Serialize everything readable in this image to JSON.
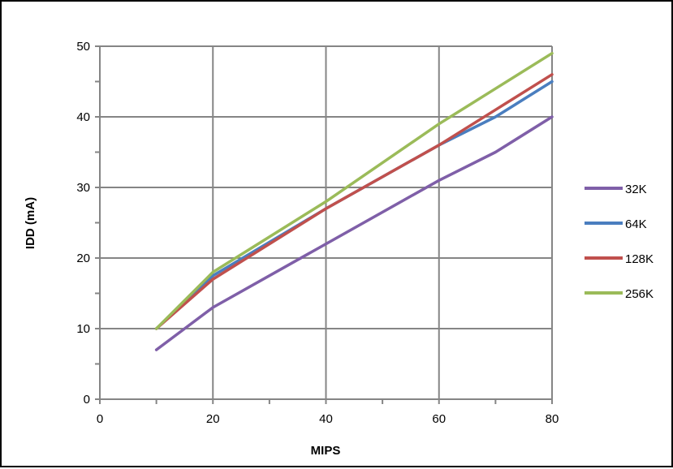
{
  "chart_data": {
    "type": "line",
    "title": "",
    "xlabel": "MIPS",
    "ylabel": "IDD (mA)",
    "xlim": [
      0,
      80
    ],
    "ylim": [
      0,
      50
    ],
    "xticks": [
      0,
      20,
      40,
      60,
      80
    ],
    "yticks": [
      0,
      10,
      20,
      30,
      40,
      50
    ],
    "x_minor_step": 10,
    "y_minor_step": 5,
    "grid": true,
    "legend_position": "right",
    "series": [
      {
        "name": "32K",
        "color": "#7f5fa8",
        "x": [
          10,
          20,
          40,
          60,
          70,
          80
        ],
        "y": [
          7,
          13,
          22,
          31,
          35,
          40
        ]
      },
      {
        "name": "64K",
        "color": "#4a7ebf",
        "x": [
          10,
          20,
          40,
          60,
          70,
          80
        ],
        "y": [
          10,
          17.5,
          27,
          36,
          40,
          45
        ]
      },
      {
        "name": "128K",
        "color": "#c0504d",
        "x": [
          10,
          20,
          40,
          60,
          70,
          80
        ],
        "y": [
          10,
          17,
          27,
          36,
          41,
          46
        ]
      },
      {
        "name": "256K",
        "color": "#9bbb59",
        "x": [
          10,
          20,
          40,
          60,
          70,
          80
        ],
        "y": [
          10,
          18,
          28,
          39,
          44,
          49
        ]
      }
    ]
  }
}
